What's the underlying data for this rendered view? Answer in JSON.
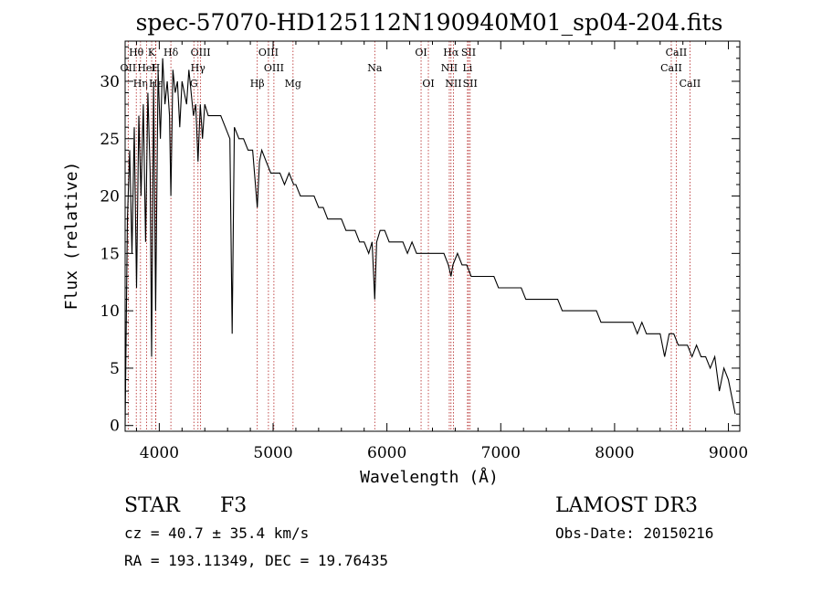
{
  "chart_data": {
    "type": "line",
    "title": "spec-57070-HD125112N190940M01_sp04-204.fits",
    "xlabel": "Wavelength (Å)",
    "ylabel": "Flux (relative)",
    "xlim": [
      3700,
      9100
    ],
    "ylim": [
      -0.5,
      33.5
    ],
    "xticks": [
      4000,
      5000,
      6000,
      7000,
      8000,
      9000
    ],
    "yticks": [
      0,
      5,
      10,
      15,
      20,
      25,
      30
    ],
    "grid": false,
    "series": [
      {
        "name": "spectrum",
        "x": [
          3700,
          3720,
          3740,
          3760,
          3780,
          3800,
          3820,
          3840,
          3860,
          3880,
          3900,
          3920,
          3933,
          3950,
          3968,
          3990,
          4010,
          4030,
          4050,
          4070,
          4090,
          4102,
          4120,
          4140,
          4160,
          4180,
          4200,
          4220,
          4240,
          4260,
          4280,
          4300,
          4320,
          4340,
          4360,
          4380,
          4400,
          4430,
          4460,
          4500,
          4540,
          4580,
          4620,
          4640,
          4660,
          4700,
          4740,
          4780,
          4820,
          4861,
          4880,
          4900,
          4940,
          4980,
          5020,
          5060,
          5100,
          5140,
          5180,
          5200,
          5240,
          5280,
          5320,
          5360,
          5400,
          5440,
          5480,
          5520,
          5560,
          5600,
          5640,
          5680,
          5720,
          5760,
          5800,
          5840,
          5870,
          5893,
          5910,
          5940,
          5980,
          6020,
          6060,
          6100,
          6140,
          6180,
          6220,
          6260,
          6300,
          6340,
          6380,
          6420,
          6460,
          6500,
          6540,
          6563,
          6580,
          6620,
          6660,
          6700,
          6740,
          6780,
          6820,
          6860,
          6900,
          6940,
          6980,
          7020,
          7060,
          7100,
          7140,
          7180,
          7220,
          7260,
          7300,
          7340,
          7380,
          7420,
          7460,
          7500,
          7540,
          7580,
          7620,
          7660,
          7700,
          7740,
          7780,
          7800,
          7840,
          7880,
          7920,
          7960,
          8000,
          8040,
          8080,
          8120,
          8160,
          8200,
          8240,
          8280,
          8320,
          8360,
          8400,
          8440,
          8480,
          8520,
          8560,
          8600,
          8640,
          8680,
          8720,
          8760,
          8800,
          8840,
          8880,
          8920,
          8960,
          9000,
          9040,
          9060
        ],
        "values": [
          0,
          18,
          24,
          15,
          26,
          12,
          27,
          20,
          28,
          16,
          29,
          22,
          6,
          30,
          10,
          31,
          25,
          32,
          28,
          30,
          27,
          20,
          31,
          29,
          30,
          26,
          30,
          29,
          28,
          31,
          29,
          27,
          28,
          23,
          28,
          25,
          28,
          27,
          27,
          27,
          27,
          26,
          25,
          8,
          26,
          25,
          25,
          24,
          24,
          19,
          23,
          24,
          23,
          22,
          22,
          22,
          21,
          22,
          21,
          21,
          20,
          20,
          20,
          20,
          19,
          19,
          18,
          18,
          18,
          18,
          17,
          17,
          17,
          16,
          16,
          15,
          16,
          11,
          16,
          17,
          17,
          16,
          16,
          16,
          16,
          15,
          16,
          15,
          15,
          15,
          15,
          15,
          15,
          15,
          14,
          13,
          14,
          15,
          14,
          14,
          13,
          13,
          13,
          13,
          13,
          13,
          12,
          12,
          12,
          12,
          12,
          12,
          11,
          11,
          11,
          11,
          11,
          11,
          11,
          11,
          10,
          10,
          10,
          10,
          10,
          10,
          10,
          10,
          10,
          9,
          9,
          9,
          9,
          9,
          9,
          9,
          9,
          8,
          9,
          8,
          8,
          8,
          8,
          6,
          8,
          8,
          7,
          7,
          7,
          6,
          7,
          6,
          6,
          5,
          6,
          3,
          5,
          4,
          2,
          1
        ]
      }
    ],
    "lines": [
      {
        "label": "Hθ",
        "x": 3798,
        "row": 1
      },
      {
        "label": "OII",
        "x": 3727,
        "row": 2
      },
      {
        "label": "Hη",
        "x": 3835,
        "row": 3
      },
      {
        "label": "K",
        "x": 3933,
        "row": 1
      },
      {
        "label": "HeI",
        "x": 3889,
        "row": 2
      },
      {
        "label": "Hε",
        "x": 3970,
        "row": 3
      },
      {
        "label": "Hδ",
        "x": 4102,
        "row": 1
      },
      {
        "label": "H",
        "x": 3968,
        "row": 2
      },
      {
        "label": "OIII",
        "x": 4363,
        "row": 1
      },
      {
        "label": "Hγ",
        "x": 4340,
        "row": 2
      },
      {
        "label": "G",
        "x": 4304,
        "row": 3
      },
      {
        "label": "Hβ",
        "x": 4861,
        "row": 3
      },
      {
        "label": "OIII",
        "x": 4959,
        "row": 1
      },
      {
        "label": "OIII",
        "x": 5007,
        "row": 2
      },
      {
        "label": "Mg",
        "x": 5175,
        "row": 3
      },
      {
        "label": "Na",
        "x": 5893,
        "row": 2
      },
      {
        "label": "OI",
        "x": 6300,
        "row": 1
      },
      {
        "label": "OI",
        "x": 6364,
        "row": 3
      },
      {
        "label": "Hα",
        "x": 6563,
        "row": 1
      },
      {
        "label": "NII",
        "x": 6548,
        "row": 2
      },
      {
        "label": "NII",
        "x": 6584,
        "row": 3
      },
      {
        "label": "SII",
        "x": 6717,
        "row": 1
      },
      {
        "label": "Li",
        "x": 6708,
        "row": 2
      },
      {
        "label": "SII",
        "x": 6731,
        "row": 3
      },
      {
        "label": "CaII",
        "x": 8542,
        "row": 1
      },
      {
        "label": "CaII",
        "x": 8498,
        "row": 2
      },
      {
        "label": "CaII",
        "x": 8662,
        "row": 3
      }
    ]
  },
  "info": {
    "class_label": "STAR",
    "subclass": "F3",
    "survey": "LAMOST DR3",
    "cz_text": "cz = 40.7 ± 35.4 km/s",
    "obs_date": "Obs-Date: 20150216",
    "coords": "RA = 193.11349, DEC =  19.76435"
  }
}
